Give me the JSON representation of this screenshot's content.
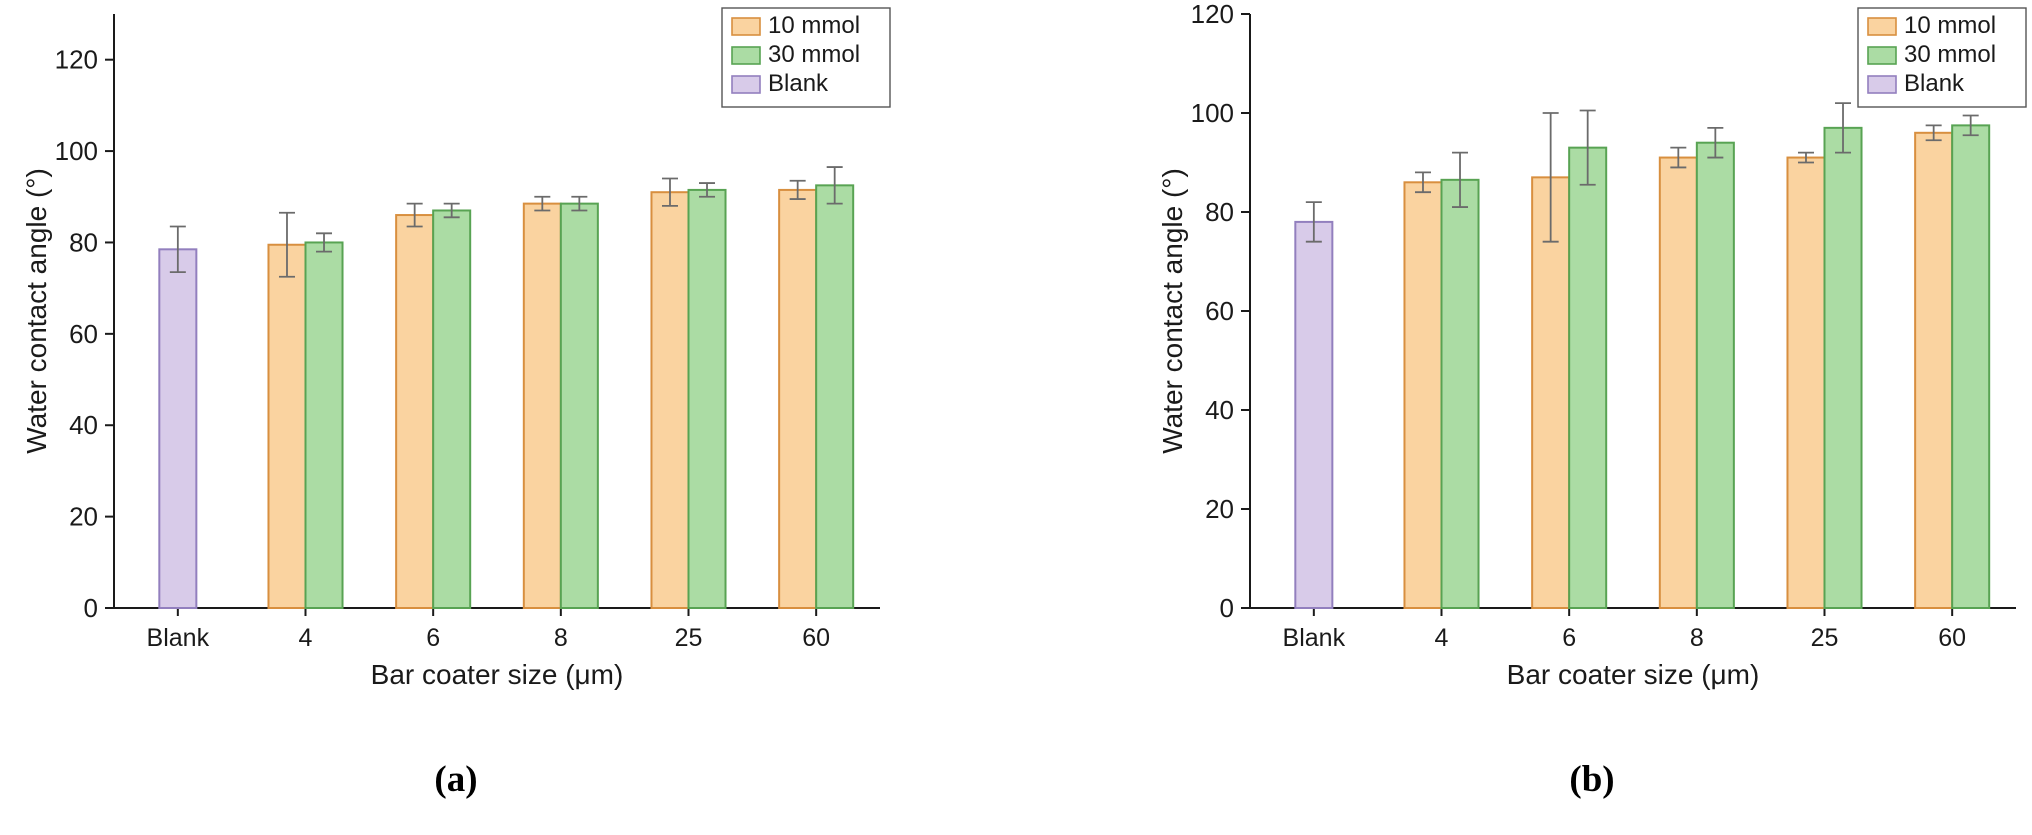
{
  "figure": {
    "background": "#ffffff",
    "axis_color": "#1a1a1a",
    "error_bar_color": "#6b6b6b"
  },
  "chart_data": [
    {
      "type": "bar",
      "panel_label": "(a)",
      "xlabel": "Bar coater size (μm)",
      "ylabel": "Water contact angle (°)",
      "categories": [
        "Blank",
        "4",
        "6",
        "8",
        "25",
        "60"
      ],
      "ylim": [
        0,
        130
      ],
      "yticks": [
        0,
        20,
        40,
        60,
        80,
        100,
        120
      ],
      "grid": false,
      "legend_position": "top-right",
      "series": [
        {
          "name": "10 mmol",
          "slot": "left",
          "fill": "#FAD3A0",
          "edge": "#D88F3F",
          "values": [
            null,
            79.5,
            86,
            88.5,
            91,
            91.5
          ],
          "errors": [
            null,
            7,
            2.5,
            1.5,
            3,
            2
          ]
        },
        {
          "name": "30 mmol",
          "slot": "right",
          "fill": "#ABDCA4",
          "edge": "#58A353",
          "values": [
            null,
            80,
            87,
            88.5,
            91.5,
            92.5
          ],
          "errors": [
            null,
            2,
            1.5,
            1.5,
            1.5,
            4
          ]
        },
        {
          "name": "Blank",
          "slot": "center",
          "fill": "#D8CBE9",
          "edge": "#927FBE",
          "values": [
            78.5,
            null,
            null,
            null,
            null,
            null
          ],
          "errors": [
            5,
            null,
            null,
            null,
            null,
            null
          ]
        }
      ]
    },
    {
      "type": "bar",
      "panel_label": "(b)",
      "xlabel": "Bar coater size (μm)",
      "ylabel": "Water contact angle (°)",
      "categories": [
        "Blank",
        "4",
        "6",
        "8",
        "25",
        "60"
      ],
      "ylim": [
        0,
        120
      ],
      "yticks": [
        0,
        20,
        40,
        60,
        80,
        100,
        120
      ],
      "grid": false,
      "legend_position": "top-right",
      "series": [
        {
          "name": "10 mmol",
          "slot": "left",
          "fill": "#FAD3A0",
          "edge": "#D88F3F",
          "values": [
            null,
            86,
            87,
            91,
            91,
            96
          ],
          "errors": [
            null,
            2,
            13,
            2,
            1,
            1.5
          ]
        },
        {
          "name": "30 mmol",
          "slot": "right",
          "fill": "#ABDCA4",
          "edge": "#58A353",
          "values": [
            null,
            86.5,
            93,
            94,
            97,
            97.5
          ],
          "errors": [
            null,
            5.5,
            7.5,
            3,
            5,
            2
          ]
        },
        {
          "name": "Blank",
          "slot": "center",
          "fill": "#D8CBE9",
          "edge": "#927FBE",
          "values": [
            78,
            null,
            null,
            null,
            null,
            null
          ],
          "errors": [
            4,
            null,
            null,
            null,
            null,
            null
          ]
        }
      ]
    }
  ]
}
